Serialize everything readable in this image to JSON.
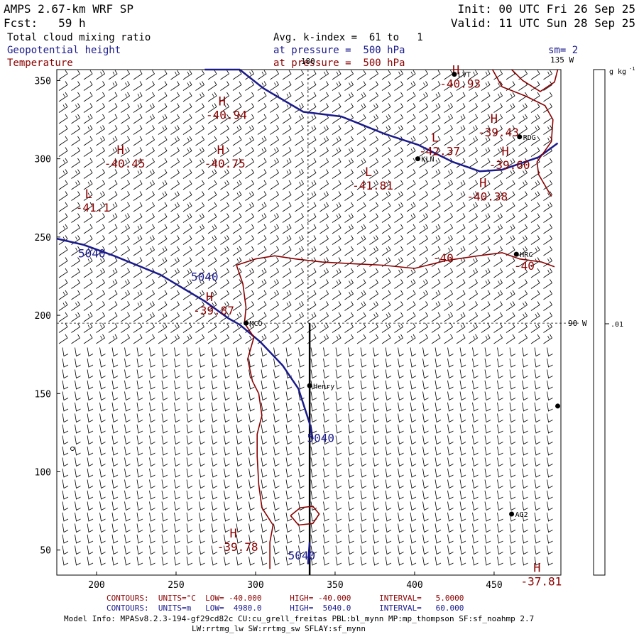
{
  "header": {
    "model": "AMPS 2.67-km WRF SP",
    "init": "Init: 00 UTC Fri 26 Sep 25",
    "fcst": "Fcst:   59 h",
    "valid": "Valid: 11 UTC Sun 28 Sep 25",
    "field1": "Total cloud mixing ratio",
    "field2": "Geopotential height",
    "field3": "Temperature",
    "avg": "Avg. k-index =  61 to   1",
    "pressure1": "at pressure =  500 hPa",
    "pressure2": "at pressure =  500 hPa",
    "sm": "sm= 2"
  },
  "colors": {
    "height_contour": "#1a1a8c",
    "temperature_contour": "#8b0000",
    "wind_barb": "#000000",
    "frame": "#000000"
  },
  "chart_data": {
    "type": "contour-map",
    "x_ticks": [
      200,
      250,
      300,
      350,
      400,
      450
    ],
    "y_ticks": [
      50,
      100,
      150,
      200,
      250,
      300,
      350
    ],
    "xlim": [
      175,
      492
    ],
    "ylim": [
      34,
      357
    ],
    "lon_labels": [
      {
        "text": "180",
        "x": 333,
        "y": 357
      },
      {
        "text": "135 W",
        "x": 480,
        "y": 357
      },
      {
        "text": "90 W",
        "x": 492,
        "y": 195
      }
    ],
    "stations": [
      {
        "name": "LVT",
        "x": 425,
        "y": 354
      },
      {
        "name": "RDG",
        "x": 466,
        "y": 314
      },
      {
        "name": "KLN",
        "x": 402,
        "y": 300
      },
      {
        "name": "HRC",
        "x": 464,
        "y": 239
      },
      {
        "name": "MCO",
        "x": 294,
        "y": 195
      },
      {
        "name": "Henry",
        "x": 334,
        "y": 155
      },
      {
        "name": "AG2",
        "x": 461,
        "y": 73
      },
      {
        "name": "",
        "x": 490,
        "y": 142
      }
    ],
    "highs_lows": [
      {
        "letter": "H",
        "value": "-40.94",
        "x": 279,
        "y": 334
      },
      {
        "letter": "H",
        "value": "-40.93",
        "x": 426,
        "y": 354
      },
      {
        "letter": "H",
        "value": "-39.43",
        "x": 450,
        "y": 323
      },
      {
        "letter": "L",
        "value": "-42.37",
        "x": 413,
        "y": 311
      },
      {
        "letter": "H",
        "value": "-39.60",
        "x": 457,
        "y": 302
      },
      {
        "letter": "H",
        "value": "-40.45",
        "x": 215,
        "y": 303
      },
      {
        "letter": "H",
        "value": "-40.75",
        "x": 278,
        "y": 303
      },
      {
        "letter": "L",
        "value": "-41.81",
        "x": 371,
        "y": 289
      },
      {
        "letter": "H",
        "value": "-40.38",
        "x": 443,
        "y": 282
      },
      {
        "letter": "L",
        "value": "-41.1",
        "x": 195,
        "y": 275
      },
      {
        "letter": "H",
        "value": "-39.87",
        "x": 271,
        "y": 209
      },
      {
        "letter": "H",
        "value": "-39.78",
        "x": 286,
        "y": 58
      },
      {
        "letter": "H",
        "value": "-37.81",
        "x": 477,
        "y": 36
      }
    ],
    "contour_labels": [
      {
        "text": "5040",
        "x": 197,
        "y": 237,
        "series": "height"
      },
      {
        "text": "5040",
        "x": 268,
        "y": 222,
        "series": "height"
      },
      {
        "text": "5040",
        "x": 341,
        "y": 119,
        "series": "height"
      },
      {
        "text": "5040",
        "x": 329,
        "y": 44,
        "series": "height"
      },
      {
        "text": "-40",
        "x": 418,
        "y": 234,
        "series": "temperature"
      },
      {
        "text": "-40",
        "x": 469,
        "y": 229,
        "series": "temperature"
      }
    ],
    "series": [
      {
        "name": "Geopotential height",
        "level": 5040,
        "points": [
          [
            175,
            249
          ],
          [
            192,
            245
          ],
          [
            211,
            238
          ],
          [
            240,
            226
          ],
          [
            268,
            209
          ],
          [
            283,
            198
          ],
          [
            290,
            194
          ],
          [
            303,
            183
          ],
          [
            317,
            168
          ],
          [
            327,
            153
          ],
          [
            334,
            131
          ],
          [
            336,
            121
          ]
        ]
      },
      {
        "name": "Geopotential height",
        "level": 5040,
        "points": [
          [
            334,
            55
          ],
          [
            333,
            41
          ]
        ]
      },
      {
        "name": "Geopotential height",
        "level": 5040,
        "points": [
          [
            268,
            357
          ],
          [
            290,
            357
          ],
          [
            305,
            345
          ],
          [
            330,
            330
          ],
          [
            354,
            327
          ],
          [
            381,
            316
          ],
          [
            402,
            309
          ],
          [
            424,
            298
          ],
          [
            441,
            292
          ],
          [
            455,
            293
          ],
          [
            478,
            301
          ],
          [
            490,
            310
          ]
        ]
      },
      {
        "name": "Temperature",
        "level": -40,
        "points": [
          [
            288,
            232
          ],
          [
            300,
            236
          ],
          [
            312,
            238
          ],
          [
            325,
            236
          ],
          [
            342,
            234
          ],
          [
            360,
            233
          ],
          [
            380,
            232
          ],
          [
            400,
            230
          ],
          [
            420,
            235
          ],
          [
            440,
            238
          ],
          [
            455,
            240
          ],
          [
            466,
            236
          ],
          [
            480,
            234
          ],
          [
            488,
            231
          ]
        ]
      },
      {
        "name": "Temperature",
        "level": -40,
        "points": [
          [
            288,
            232
          ],
          [
            292,
            220
          ],
          [
            294,
            205
          ],
          [
            293,
            195
          ],
          [
            299,
            186
          ],
          [
            295,
            172
          ],
          [
            298,
            158
          ],
          [
            302,
            150
          ],
          [
            304,
            136
          ],
          [
            301,
            124
          ],
          [
            301,
            110
          ],
          [
            302,
            92
          ],
          [
            304,
            77
          ],
          [
            311,
            66
          ],
          [
            309,
            55
          ],
          [
            309,
            38
          ]
        ]
      },
      {
        "name": "Temperature",
        "level": -40,
        "points": [
          [
            322,
            72
          ],
          [
            328,
            77
          ],
          [
            336,
            78
          ],
          [
            340,
            73
          ],
          [
            336,
            67
          ],
          [
            327,
            66
          ],
          [
            322,
            72
          ]
        ]
      },
      {
        "name": "Temperature",
        "level": -40,
        "points": [
          [
            449,
            357
          ],
          [
            455,
            346
          ],
          [
            470,
            340
          ],
          [
            482,
            334
          ],
          [
            487,
            325
          ],
          [
            486,
            311
          ],
          [
            477,
            298
          ],
          [
            478,
            290
          ],
          [
            486,
            276
          ]
        ]
      },
      {
        "name": "Temperature",
        "level": -40,
        "points": [
          [
            461,
            357
          ],
          [
            468,
            350
          ],
          [
            479,
            343
          ],
          [
            488,
            349
          ],
          [
            490,
            357
          ]
        ]
      }
    ],
    "contour_footer": [
      {
        "series": "temperature",
        "text": "CONTOURS:  UNITS=°C  LOW= -40.000      HIGH= -40.000      INTERVAL=   5.0000"
      },
      {
        "series": "height",
        "text": "CONTOURS:  UNITS=m   LOW=  4980.0      HIGH=  5040.0      INTERVAL=   60.000"
      }
    ],
    "colorbar": {
      "unit": "g kg-1",
      "tick_label": ".01"
    },
    "model_info": [
      "Model Info: MPASv8.2.3-194-gf29cd82c CU:cu_grell_freitas PBL:bl_mynn MP:mp_thompson SF:sf_noahmp 2.7",
      "LW:rrtmg_lw SW:rrtmg_sw SFLAY:sf_mynn"
    ]
  }
}
